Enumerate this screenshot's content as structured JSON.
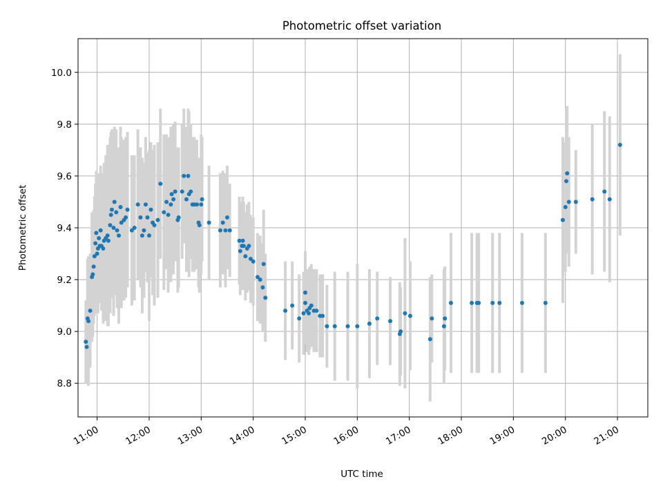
{
  "chart_data": {
    "type": "scatter",
    "title": "Photometric offset variation",
    "xlabel": "UTC time",
    "ylabel": "Photometric offset",
    "x_axis_type": "time",
    "x_ticks": [
      "11:00",
      "12:00",
      "13:00",
      "14:00",
      "15:00",
      "16:00",
      "17:00",
      "18:00",
      "19:00",
      "20:00",
      "21:00"
    ],
    "xlim": [
      "10:38",
      "21:35"
    ],
    "ylim": [
      8.67,
      10.13
    ],
    "y_ticks": [
      8.8,
      9.0,
      9.2,
      9.4,
      9.6,
      9.8,
      10.0
    ],
    "grid": true,
    "errorbar_color": "#d3d3d3",
    "marker_color": "#1f77b4",
    "points": [
      {
        "x": "10:47",
        "y": 8.96,
        "err": 0.16
      },
      {
        "x": "10:48",
        "y": 8.94,
        "err": 0.14
      },
      {
        "x": "10:49",
        "y": 9.05,
        "err": 0.23
      },
      {
        "x": "10:50",
        "y": 9.04,
        "err": 0.25
      },
      {
        "x": "10:52",
        "y": 9.08,
        "err": 0.22
      },
      {
        "x": "10:54",
        "y": 9.21,
        "err": 0.25
      },
      {
        "x": "10:55",
        "y": 9.22,
        "err": 0.24
      },
      {
        "x": "10:56",
        "y": 9.25,
        "err": 0.22
      },
      {
        "x": "10:57",
        "y": 9.29,
        "err": 0.23
      },
      {
        "x": "10:58",
        "y": 9.34,
        "err": 0.23
      },
      {
        "x": "10:59",
        "y": 9.38,
        "err": 0.24
      },
      {
        "x": "11:00",
        "y": 9.3,
        "err": 0.23
      },
      {
        "x": "11:01",
        "y": 9.32,
        "err": 0.25
      },
      {
        "x": "11:02",
        "y": 9.36,
        "err": 0.25
      },
      {
        "x": "11:03",
        "y": 9.33,
        "err": 0.22
      },
      {
        "x": "11:04",
        "y": 9.39,
        "err": 0.25
      },
      {
        "x": "11:05",
        "y": 9.33,
        "err": 0.25
      },
      {
        "x": "11:07",
        "y": 9.32,
        "err": 0.29
      },
      {
        "x": "11:08",
        "y": 9.35,
        "err": 0.3
      },
      {
        "x": "11:10",
        "y": 9.36,
        "err": 0.32
      },
      {
        "x": "11:12",
        "y": 9.37,
        "err": 0.35
      },
      {
        "x": "11:13",
        "y": 9.35,
        "err": 0.33
      },
      {
        "x": "11:15",
        "y": 9.41,
        "err": 0.34
      },
      {
        "x": "11:16",
        "y": 9.45,
        "err": 0.32
      },
      {
        "x": "11:17",
        "y": 9.47,
        "err": 0.31
      },
      {
        "x": "11:19",
        "y": 9.4,
        "err": 0.34
      },
      {
        "x": "11:20",
        "y": 9.5,
        "err": 0.29
      },
      {
        "x": "11:22",
        "y": 9.46,
        "err": 0.32
      },
      {
        "x": "11:23",
        "y": 9.39,
        "err": 0.3
      },
      {
        "x": "11:25",
        "y": 9.37,
        "err": 0.34
      },
      {
        "x": "11:27",
        "y": 9.48,
        "err": 0.31
      },
      {
        "x": "11:28",
        "y": 9.42,
        "err": 0.33
      },
      {
        "x": "11:31",
        "y": 9.43,
        "err": 0.31
      },
      {
        "x": "11:33",
        "y": 9.44,
        "err": 0.31
      },
      {
        "x": "11:35",
        "y": 9.47,
        "err": 0.3
      },
      {
        "x": "11:40",
        "y": 9.39,
        "err": 0.29
      },
      {
        "x": "11:43",
        "y": 9.4,
        "err": 0.28
      },
      {
        "x": "11:47",
        "y": 9.49,
        "err": 0.29
      },
      {
        "x": "11:50",
        "y": 9.44,
        "err": 0.27
      },
      {
        "x": "11:52",
        "y": 9.37,
        "err": 0.3
      },
      {
        "x": "11:54",
        "y": 9.39,
        "err": 0.26
      },
      {
        "x": "11:56",
        "y": 9.49,
        "err": 0.26
      },
      {
        "x": "11:58",
        "y": 9.44,
        "err": 0.25
      },
      {
        "x": "12:00",
        "y": 9.37,
        "err": 0.33
      },
      {
        "x": "12:02",
        "y": 9.47,
        "err": 0.26
      },
      {
        "x": "12:04",
        "y": 9.42,
        "err": 0.28
      },
      {
        "x": "12:06",
        "y": 9.41,
        "err": 0.31
      },
      {
        "x": "12:10",
        "y": 9.43,
        "err": 0.3
      },
      {
        "x": "12:13",
        "y": 9.57,
        "err": 0.29
      },
      {
        "x": "12:17",
        "y": 9.46,
        "err": 0.3
      },
      {
        "x": "12:20",
        "y": 9.5,
        "err": 0.26
      },
      {
        "x": "12:22",
        "y": 9.45,
        "err": 0.3
      },
      {
        "x": "12:25",
        "y": 9.49,
        "err": 0.3
      },
      {
        "x": "12:26",
        "y": 9.53,
        "err": 0.26
      },
      {
        "x": "12:28",
        "y": 9.51,
        "err": 0.29
      },
      {
        "x": "12:30",
        "y": 9.54,
        "err": 0.27
      },
      {
        "x": "12:33",
        "y": 9.43,
        "err": 0.28
      },
      {
        "x": "12:34",
        "y": 9.44,
        "err": 0.27
      },
      {
        "x": "12:38",
        "y": 9.54,
        "err": 0.26
      },
      {
        "x": "12:40",
        "y": 9.6,
        "err": 0.26
      },
      {
        "x": "12:43",
        "y": 9.51,
        "err": 0.28
      },
      {
        "x": "12:45",
        "y": 9.6,
        "err": 0.26
      },
      {
        "x": "12:46",
        "y": 9.53,
        "err": 0.32
      },
      {
        "x": "12:48",
        "y": 9.54,
        "err": 0.26
      },
      {
        "x": "12:50",
        "y": 9.49,
        "err": 0.26
      },
      {
        "x": "12:52",
        "y": 9.49,
        "err": 0.26
      },
      {
        "x": "12:55",
        "y": 9.49,
        "err": 0.25
      },
      {
        "x": "12:57",
        "y": 9.42,
        "err": 0.25
      },
      {
        "x": "12:58",
        "y": 9.41,
        "err": 0.26
      },
      {
        "x": "13:00",
        "y": 9.49,
        "err": 0.27
      },
      {
        "x": "13:01",
        "y": 9.51,
        "err": 0.24
      },
      {
        "x": "13:09",
        "y": 9.42,
        "err": 0.22
      },
      {
        "x": "13:22",
        "y": 9.39,
        "err": 0.22
      },
      {
        "x": "13:25",
        "y": 9.42,
        "err": 0.2
      },
      {
        "x": "13:28",
        "y": 9.39,
        "err": 0.22
      },
      {
        "x": "13:30",
        "y": 9.44,
        "err": 0.2
      },
      {
        "x": "13:33",
        "y": 9.39,
        "err": 0.18
      },
      {
        "x": "13:44",
        "y": 9.35,
        "err": 0.17
      },
      {
        "x": "13:45",
        "y": 9.31,
        "err": 0.17
      },
      {
        "x": "13:47",
        "y": 9.33,
        "err": 0.17
      },
      {
        "x": "13:48",
        "y": 9.35,
        "err": 0.17
      },
      {
        "x": "13:49",
        "y": 9.33,
        "err": 0.17
      },
      {
        "x": "13:51",
        "y": 9.29,
        "err": 0.17
      },
      {
        "x": "13:53",
        "y": 9.32,
        "err": 0.17
      },
      {
        "x": "13:55",
        "y": 9.33,
        "err": 0.17
      },
      {
        "x": "13:57",
        "y": 9.28,
        "err": 0.17
      },
      {
        "x": "14:00",
        "y": 9.27,
        "err": 0.17
      },
      {
        "x": "14:05",
        "y": 9.21,
        "err": 0.17
      },
      {
        "x": "14:08",
        "y": 9.2,
        "err": 0.17
      },
      {
        "x": "14:11",
        "y": 9.17,
        "err": 0.17
      },
      {
        "x": "14:12",
        "y": 9.26,
        "err": 0.21
      },
      {
        "x": "14:14",
        "y": 9.13,
        "err": 0.17
      },
      {
        "x": "14:37",
        "y": 9.08,
        "err": 0.19
      },
      {
        "x": "14:45",
        "y": 9.1,
        "err": 0.17
      },
      {
        "x": "14:53",
        "y": 9.05,
        "err": 0.17
      },
      {
        "x": "14:58",
        "y": 9.07,
        "err": 0.16
      },
      {
        "x": "15:00",
        "y": 9.15,
        "err": 0.16
      },
      {
        "x": "15:00",
        "y": 9.11,
        "err": 0.16
      },
      {
        "x": "15:02",
        "y": 9.08,
        "err": 0.16
      },
      {
        "x": "15:04",
        "y": 9.07,
        "err": 0.16
      },
      {
        "x": "15:05",
        "y": 9.09,
        "err": 0.16
      },
      {
        "x": "15:07",
        "y": 9.1,
        "err": 0.16
      },
      {
        "x": "15:10",
        "y": 9.08,
        "err": 0.16
      },
      {
        "x": "15:13",
        "y": 9.08,
        "err": 0.16
      },
      {
        "x": "15:17",
        "y": 9.06,
        "err": 0.16
      },
      {
        "x": "15:20",
        "y": 9.06,
        "err": 0.16
      },
      {
        "x": "15:25",
        "y": 9.02,
        "err": 0.16
      },
      {
        "x": "15:34",
        "y": 9.02,
        "err": 0.21
      },
      {
        "x": "15:49",
        "y": 9.02,
        "err": 0.21
      },
      {
        "x": "16:00",
        "y": 9.02,
        "err": 0.24
      },
      {
        "x": "16:14",
        "y": 9.03,
        "err": 0.21
      },
      {
        "x": "16:23",
        "y": 9.05,
        "err": 0.18
      },
      {
        "x": "16:38",
        "y": 9.04,
        "err": 0.17
      },
      {
        "x": "16:49",
        "y": 8.99,
        "err": 0.2
      },
      {
        "x": "16:50",
        "y": 9.0,
        "err": 0.17
      },
      {
        "x": "16:55",
        "y": 9.07,
        "err": 0.29
      },
      {
        "x": "17:01",
        "y": 9.06,
        "err": 0.21
      },
      {
        "x": "17:24",
        "y": 8.97,
        "err": 0.24
      },
      {
        "x": "17:26",
        "y": 9.05,
        "err": 0.17
      },
      {
        "x": "17:40",
        "y": 9.02,
        "err": 0.22
      },
      {
        "x": "17:41",
        "y": 9.05,
        "err": 0.2
      },
      {
        "x": "17:48",
        "y": 9.11,
        "err": 0.27
      },
      {
        "x": "18:12",
        "y": 9.11,
        "err": 0.27
      },
      {
        "x": "18:18",
        "y": 9.11,
        "err": 0.27
      },
      {
        "x": "18:20",
        "y": 9.11,
        "err": 0.27
      },
      {
        "x": "18:36",
        "y": 9.11,
        "err": 0.27
      },
      {
        "x": "18:44",
        "y": 9.11,
        "err": 0.27
      },
      {
        "x": "19:10",
        "y": 9.11,
        "err": 0.27
      },
      {
        "x": "19:37",
        "y": 9.11,
        "err": 0.27
      },
      {
        "x": "19:57",
        "y": 9.43,
        "err": 0.32
      },
      {
        "x": "20:00",
        "y": 9.48,
        "err": 0.25
      },
      {
        "x": "20:01",
        "y": 9.58,
        "err": 0.28
      },
      {
        "x": "20:02",
        "y": 9.61,
        "err": 0.26
      },
      {
        "x": "20:04",
        "y": 9.5,
        "err": 0.25
      },
      {
        "x": "20:12",
        "y": 9.5,
        "err": 0.2
      },
      {
        "x": "20:31",
        "y": 9.51,
        "err": 0.29
      },
      {
        "x": "20:45",
        "y": 9.54,
        "err": 0.31
      },
      {
        "x": "20:51",
        "y": 9.51,
        "err": 0.32
      },
      {
        "x": "21:03",
        "y": 9.72,
        "err": 0.35
      }
    ]
  }
}
